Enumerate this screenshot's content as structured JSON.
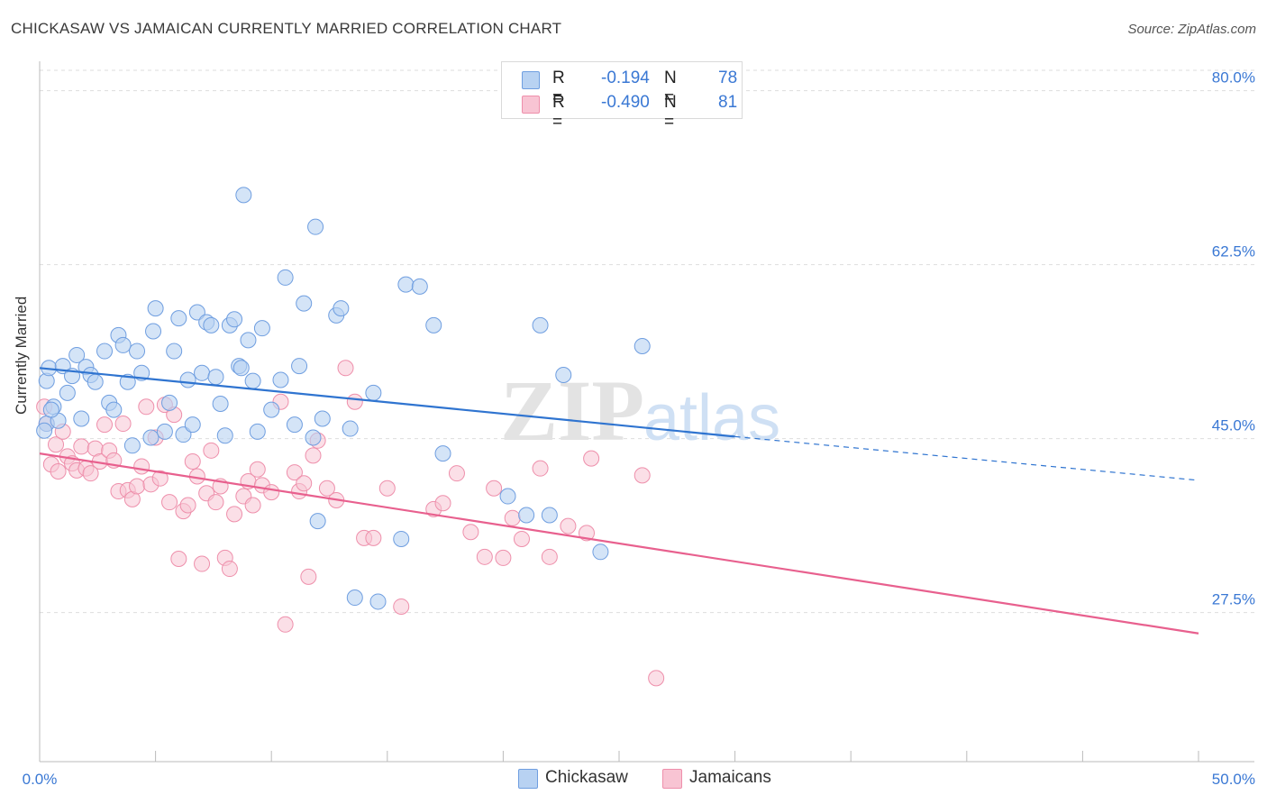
{
  "header": {
    "title": "CHICKASAW VS JAMAICAN CURRENTLY MARRIED CORRELATION CHART",
    "source": "Source: ZipAtlas.com"
  },
  "watermark": {
    "zip": "ZIP",
    "atlas": "atlas"
  },
  "legend": {
    "rows": [
      {
        "r_label": "R =",
        "r_value": "-0.194",
        "n_label": "N =",
        "n_value": "78",
        "color": "#a8c8f0"
      },
      {
        "r_label": "R =",
        "r_value": "-0.490",
        "n_label": "N =",
        "n_value": "81",
        "color": "#f5b8cb"
      }
    ]
  },
  "bottom_legend": {
    "series1": "Chickasaw",
    "series2": "Jamaicans"
  },
  "colors": {
    "chickasaw_fill": "#b8d2f2",
    "chickasaw_stroke": "#6f9ee0",
    "chickasaw_line": "#2f74d0",
    "jamaican_fill": "#f8c4d3",
    "jamaican_stroke": "#ee8fab",
    "jamaican_line": "#e8608e",
    "tick_label": "#3a78d4",
    "grid": "#dddddd"
  },
  "chart_data": {
    "type": "scatter",
    "title": "CHICKASAW VS JAMAICAN CURRENTLY MARRIED CORRELATION CHART",
    "xlabel": "",
    "ylabel": "Currently Married",
    "xlim": [
      0,
      50
    ],
    "ylim": [
      12.5,
      83.5
    ],
    "x_tick_labels": [
      "0.0%",
      "50.0%"
    ],
    "y_ticks": [
      27.5,
      45.0,
      62.5,
      80.0
    ],
    "y_tick_labels": [
      "27.5%",
      "45.0%",
      "62.5%",
      "80.0%"
    ],
    "grid": true,
    "legend_position": "top-center",
    "series": [
      {
        "name": "Chickasaw",
        "R": -0.194,
        "N": 78,
        "trend": {
          "x0": 0,
          "y0": 52.1,
          "x1": 30,
          "y1": 45.2,
          "dashed_to_x": 50,
          "dashed_to_y": 40.8
        },
        "points": [
          [
            0.3,
            46.5
          ],
          [
            0.3,
            50.8
          ],
          [
            0.4,
            52.1
          ],
          [
            0.6,
            48.2
          ],
          [
            0.8,
            46.8
          ],
          [
            1.0,
            52.3
          ],
          [
            1.2,
            49.6
          ],
          [
            1.4,
            51.3
          ],
          [
            1.6,
            53.4
          ],
          [
            1.8,
            47.0
          ],
          [
            2.0,
            52.2
          ],
          [
            2.2,
            51.4
          ],
          [
            2.4,
            50.7
          ],
          [
            2.8,
            53.8
          ],
          [
            3.0,
            48.6
          ],
          [
            3.2,
            47.9
          ],
          [
            3.4,
            55.4
          ],
          [
            3.6,
            54.4
          ],
          [
            3.8,
            50.7
          ],
          [
            4.0,
            44.3
          ],
          [
            4.2,
            53.8
          ],
          [
            4.4,
            51.6
          ],
          [
            4.8,
            45.1
          ],
          [
            4.9,
            55.8
          ],
          [
            5.0,
            58.1
          ],
          [
            5.4,
            45.7
          ],
          [
            5.6,
            48.6
          ],
          [
            5.8,
            53.8
          ],
          [
            6.0,
            57.1
          ],
          [
            6.2,
            45.4
          ],
          [
            6.4,
            50.9
          ],
          [
            6.6,
            46.4
          ],
          [
            6.8,
            57.7
          ],
          [
            7.0,
            51.6
          ],
          [
            7.2,
            56.7
          ],
          [
            7.4,
            56.4
          ],
          [
            7.6,
            51.2
          ],
          [
            7.8,
            48.5
          ],
          [
            8.0,
            45.3
          ],
          [
            8.2,
            56.4
          ],
          [
            8.4,
            57.0
          ],
          [
            8.6,
            52.3
          ],
          [
            8.7,
            52.1
          ],
          [
            8.8,
            69.5
          ],
          [
            9.0,
            54.9
          ],
          [
            9.2,
            50.8
          ],
          [
            9.4,
            45.7
          ],
          [
            9.6,
            56.1
          ],
          [
            10.0,
            47.9
          ],
          [
            10.4,
            50.9
          ],
          [
            10.6,
            61.2
          ],
          [
            11.0,
            46.4
          ],
          [
            11.2,
            52.3
          ],
          [
            11.4,
            58.6
          ],
          [
            11.8,
            45.1
          ],
          [
            11.9,
            66.3
          ],
          [
            12.0,
            36.7
          ],
          [
            12.2,
            47.0
          ],
          [
            12.8,
            57.4
          ],
          [
            13.0,
            58.1
          ],
          [
            13.4,
            46.0
          ],
          [
            13.6,
            29.0
          ],
          [
            14.4,
            49.6
          ],
          [
            14.6,
            28.6
          ],
          [
            15.6,
            34.9
          ],
          [
            15.8,
            60.5
          ],
          [
            16.4,
            60.3
          ],
          [
            17.0,
            56.4
          ],
          [
            17.4,
            43.5
          ],
          [
            20.2,
            39.2
          ],
          [
            21.0,
            37.3
          ],
          [
            21.6,
            56.4
          ],
          [
            22.0,
            37.3
          ],
          [
            22.6,
            51.4
          ],
          [
            24.2,
            33.6
          ],
          [
            26.0,
            54.3
          ],
          [
            0.2,
            45.8
          ],
          [
            0.5,
            47.9
          ]
        ]
      },
      {
        "name": "Jamaicans",
        "R": -0.49,
        "N": 81,
        "trend": {
          "x0": 0,
          "y0": 43.5,
          "x1": 50,
          "y1": 25.4
        },
        "points": [
          [
            0.2,
            48.2
          ],
          [
            0.3,
            46.5
          ],
          [
            0.5,
            42.4
          ],
          [
            0.7,
            44.4
          ],
          [
            0.8,
            41.7
          ],
          [
            1.0,
            45.7
          ],
          [
            1.2,
            43.2
          ],
          [
            1.4,
            42.5
          ],
          [
            1.6,
            41.8
          ],
          [
            1.8,
            44.2
          ],
          [
            2.0,
            42.0
          ],
          [
            2.2,
            41.5
          ],
          [
            2.4,
            44.0
          ],
          [
            2.6,
            42.7
          ],
          [
            2.8,
            46.4
          ],
          [
            3.0,
            43.8
          ],
          [
            3.2,
            42.8
          ],
          [
            3.4,
            39.7
          ],
          [
            3.6,
            46.5
          ],
          [
            3.8,
            39.8
          ],
          [
            4.0,
            38.9
          ],
          [
            4.2,
            40.2
          ],
          [
            4.4,
            42.2
          ],
          [
            4.6,
            48.2
          ],
          [
            4.8,
            40.4
          ],
          [
            5.0,
            45.1
          ],
          [
            5.2,
            41.0
          ],
          [
            5.4,
            48.4
          ],
          [
            5.6,
            38.6
          ],
          [
            5.8,
            47.4
          ],
          [
            6.0,
            32.9
          ],
          [
            6.2,
            37.7
          ],
          [
            6.4,
            38.3
          ],
          [
            6.6,
            42.7
          ],
          [
            6.8,
            41.2
          ],
          [
            7.0,
            32.4
          ],
          [
            7.2,
            39.5
          ],
          [
            7.4,
            43.8
          ],
          [
            7.6,
            38.6
          ],
          [
            7.8,
            40.2
          ],
          [
            8.0,
            33.0
          ],
          [
            8.2,
            31.9
          ],
          [
            8.4,
            37.4
          ],
          [
            8.8,
            39.2
          ],
          [
            9.0,
            40.7
          ],
          [
            9.2,
            38.3
          ],
          [
            9.4,
            41.9
          ],
          [
            9.6,
            40.3
          ],
          [
            10.0,
            39.6
          ],
          [
            10.4,
            48.7
          ],
          [
            10.6,
            26.3
          ],
          [
            11.0,
            41.6
          ],
          [
            11.2,
            39.7
          ],
          [
            11.4,
            40.5
          ],
          [
            11.6,
            31.1
          ],
          [
            11.8,
            43.3
          ],
          [
            12.0,
            44.8
          ],
          [
            12.4,
            40.0
          ],
          [
            12.8,
            38.8
          ],
          [
            13.2,
            52.1
          ],
          [
            13.6,
            48.7
          ],
          [
            14.0,
            35.0
          ],
          [
            14.4,
            35.0
          ],
          [
            15.0,
            40.0
          ],
          [
            15.6,
            28.1
          ],
          [
            17.0,
            37.9
          ],
          [
            17.4,
            38.5
          ],
          [
            18.0,
            41.5
          ],
          [
            18.6,
            35.6
          ],
          [
            19.2,
            33.1
          ],
          [
            19.6,
            40.0
          ],
          [
            20.0,
            33.0
          ],
          [
            20.4,
            37.0
          ],
          [
            20.8,
            34.9
          ],
          [
            21.6,
            42.0
          ],
          [
            22.0,
            33.1
          ],
          [
            22.8,
            36.2
          ],
          [
            23.6,
            35.5
          ],
          [
            23.8,
            43.0
          ],
          [
            26.0,
            41.3
          ],
          [
            26.6,
            20.9
          ]
        ]
      }
    ]
  }
}
